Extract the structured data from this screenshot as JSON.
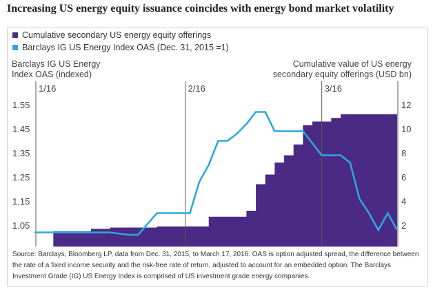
{
  "title": "Increasing US energy equity issuance coincides with energy bond market volatility",
  "legend": [
    {
      "label": "Cumulative secondary US energy equity offerings",
      "color": "#4a2a84"
    },
    {
      "label": "Barclays IG US Energy Index OAS (Dec. 31, 2015 =1)",
      "color": "#2ea7e0"
    }
  ],
  "left_axis_title": "Barclays IG US Energy Index OAS (indexed)",
  "right_axis_title": "Cumulative  value of US energy secondary equity offerings (USD bn)",
  "source": "Source: Barclays, Bloomberg LP, data from Dec. 31, 2015, to March 17, 2016. OAS is option adjusted spread, the difference between the rate of a fixed income security and the risk-free rate of return, adjusted to account for an embedded option. The Barclays Investment Grade (IG) US Energy Index is comprised of US investment grade energy companies.",
  "chart_data": {
    "type": "line",
    "title": "Increasing US energy equity issuance coincides with energy bond market volatility",
    "x": [
      "2015-12-31",
      "2016-01-04",
      "2016-01-08",
      "2016-01-12",
      "2016-01-16",
      "2016-01-20",
      "2016-01-22",
      "2016-01-26",
      "2016-01-30",
      "2016-02-02",
      "2016-02-04",
      "2016-02-06",
      "2016-02-08",
      "2016-02-10",
      "2016-02-12",
      "2016-02-14",
      "2016-02-16",
      "2016-02-18",
      "2016-02-20",
      "2016-02-22",
      "2016-02-24",
      "2016-02-26",
      "2016-02-28",
      "2016-03-01",
      "2016-03-03",
      "2016-03-05",
      "2016-03-07",
      "2016-03-09",
      "2016-03-11",
      "2016-03-13",
      "2016-03-15",
      "2016-03-17"
    ],
    "x_tick_labels": [
      "1/16",
      "2/16",
      "3/16"
    ],
    "series": [
      {
        "name": "Cumulative secondary US energy equity offerings",
        "axis": "right",
        "style": "area",
        "color": "#4a2a84",
        "values": [
          0,
          1.5,
          1.5,
          1.7,
          1.8,
          1.8,
          1.8,
          1.9,
          1.9,
          1.9,
          1.9,
          2.7,
          2.7,
          2.7,
          2.7,
          3.2,
          5.4,
          6.2,
          7.2,
          7.8,
          8.7,
          10.3,
          10.6,
          10.6,
          10.9,
          11.2,
          11.2,
          11.2,
          11.2,
          11.2,
          11.2,
          11.2
        ]
      },
      {
        "name": "Barclays IG US Energy Index OAS (Dec. 31, 2015 =1)",
        "axis": "left",
        "style": "line",
        "color": "#2ea7e0",
        "values": [
          1.02,
          1.02,
          1.02,
          1.02,
          1.02,
          1.01,
          1.01,
          1.1,
          1.1,
          1.1,
          1.23,
          1.3,
          1.4,
          1.4,
          1.43,
          1.47,
          1.52,
          1.52,
          1.44,
          1.44,
          1.44,
          1.44,
          1.39,
          1.34,
          1.34,
          1.34,
          1.31,
          1.16,
          1.1,
          1.03,
          1.1,
          1.03
        ]
      }
    ],
    "y_left": {
      "label": "Barclays IG US Energy Index OAS (indexed)",
      "ticks": [
        1.05,
        1.15,
        1.25,
        1.35,
        1.45,
        1.55
      ]
    },
    "y_right": {
      "label": "Cumulative  value of US energy secondary equity offerings (USD bn)",
      "ticks": [
        2,
        4,
        6,
        8,
        10,
        12
      ]
    },
    "grid": false,
    "legend_position": "top-left"
  }
}
